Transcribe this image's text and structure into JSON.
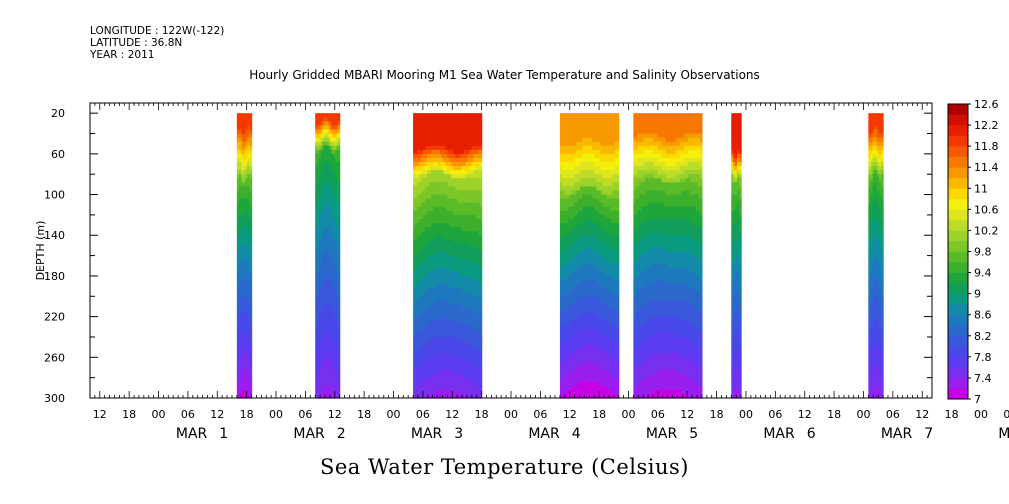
{
  "header": {
    "longitude": "LONGITUDE : 122W(-122)",
    "latitude": "LATITUDE : 36.8N",
    "year": "YEAR : 2011"
  },
  "chart_data": {
    "type": "heatmap",
    "title": "Hourly Gridded MBARI Mooring M1 Sea Water Temperature and Salinity Observations",
    "subtitle": "Sea Water Temperature (Celsius)",
    "ylabel": "DEPTH (m)",
    "ylim": [
      300,
      10
    ],
    "y_ticks": [
      "20",
      "60",
      "100",
      "140",
      "180",
      "220",
      "260",
      "300"
    ],
    "x_range_hours": [
      -14,
      158
    ],
    "x_hour_ticks": [
      "12",
      "18",
      "00",
      "06",
      "12",
      "18",
      "00",
      "06",
      "12",
      "18",
      "00",
      "06",
      "12",
      "18",
      "00",
      "06",
      "12",
      "18",
      "00",
      "06",
      "12",
      "18",
      "00",
      "06",
      "12",
      "18",
      "00",
      "06",
      "12",
      "18",
      "00",
      "06",
      "12"
    ],
    "x_day_labels": [
      {
        "month": "MAR",
        "day": "1"
      },
      {
        "month": "MAR",
        "day": "2"
      },
      {
        "month": "MAR",
        "day": "3"
      },
      {
        "month": "MAR",
        "day": "4"
      },
      {
        "month": "MAR",
        "day": "5"
      },
      {
        "month": "MAR",
        "day": "6"
      },
      {
        "month": "MAR",
        "day": "7"
      },
      {
        "month": "MAR",
        "day": "8"
      }
    ],
    "colorbar": {
      "levels": [
        7,
        7.2,
        7.4,
        7.6,
        7.8,
        8,
        8.2,
        8.4,
        8.6,
        8.8,
        9,
        9.2,
        9.4,
        9.6,
        9.8,
        10,
        10.2,
        10.4,
        10.6,
        10.8,
        11,
        11.2,
        11.4,
        11.6,
        11.8,
        12,
        12.2,
        12.4,
        12.6
      ],
      "labels": [
        "12.6",
        "12.2",
        "11.8",
        "11.4",
        "11",
        "10.6",
        "10.2",
        "9.8",
        "9.4",
        "9",
        "8.6",
        "8.2",
        "7.8",
        "7.4",
        "7"
      ],
      "colors": [
        "#c800e6",
        "#9a1ef0",
        "#7830f0",
        "#5c3cf0",
        "#4848e8",
        "#3a58dc",
        "#2a68cc",
        "#1e78be",
        "#128aa8",
        "#0a9a80",
        "#109e5a",
        "#1ea63c",
        "#3caf2c",
        "#5abb28",
        "#7cc628",
        "#9cd22a",
        "#bcdc28",
        "#dde61e",
        "#f4f00c",
        "#fbd800",
        "#f8b800",
        "#f79800",
        "#f67800",
        "#f45a00",
        "#f33800",
        "#e81e00",
        "#d01000",
        "#b00000"
      ]
    },
    "segments": [
      {
        "start": 16,
        "end": 19,
        "surface": 11.9,
        "mixed_depth": 35,
        "thermo_depth": 85,
        "mid": 9.9,
        "bottom": 7.3
      },
      {
        "start": 32,
        "end": 37,
        "surface": 11.9,
        "mixed_depth": 28,
        "thermo_depth": 55,
        "mid": 9.6,
        "bottom": 7.5
      },
      {
        "start": 52,
        "end": 66,
        "surface": 12.0,
        "mixed_depth": 55,
        "thermo_depth": 80,
        "mid": 10.4,
        "bottom": 7.5
      },
      {
        "start": 82,
        "end": 94,
        "surface": 11.3,
        "mixed_depth": 45,
        "thermo_depth": 95,
        "mid": 10.0,
        "bottom": 7.2
      },
      {
        "start": 97,
        "end": 111,
        "surface": 11.5,
        "mixed_depth": 40,
        "thermo_depth": 85,
        "mid": 10.0,
        "bottom": 7.3
      },
      {
        "start": 117,
        "end": 119,
        "surface": 12.0,
        "mixed_depth": 60,
        "thermo_depth": 85,
        "mid": 10.0,
        "bottom": 7.5
      },
      {
        "start": 145,
        "end": 148,
        "surface": 11.9,
        "mixed_depth": 35,
        "thermo_depth": 80,
        "mid": 9.8,
        "bottom": 7.5
      },
      {
        "start": 186,
        "end": 193,
        "surface": 12.0,
        "mixed_depth": 30,
        "thermo_depth": 75,
        "mid": 9.9,
        "bottom": 7.3
      }
    ]
  }
}
